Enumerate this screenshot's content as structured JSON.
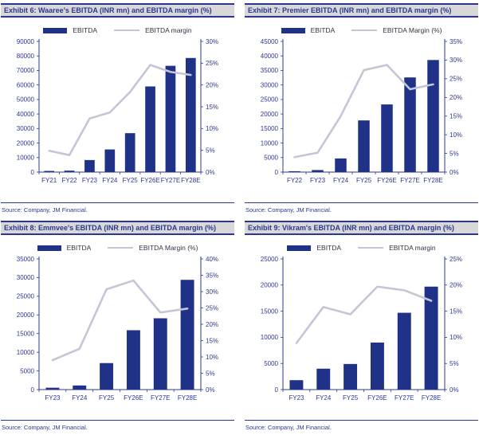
{
  "colors": {
    "bar": "#1f3288",
    "line": "#c4c6d8",
    "axis": "#2c3792",
    "tick_text": "#2c3792",
    "title_text": "#2c3792",
    "title_bg": "#d8d8d8",
    "source_text": "#2c3792"
  },
  "chart_data": [
    {
      "type": "bar",
      "combo": "bar+line",
      "title": "Exhibit 6: Waaree's EBITDA (INR mn) and EBITDA margin (%)",
      "source": "Source: Company, JM Financial.",
      "categories": [
        "FY21",
        "FY22",
        "FY23",
        "FY24",
        "FY25",
        "FY26E",
        "FY27E",
        "FY28E"
      ],
      "series": [
        {
          "name": "EBITDA",
          "type": "bar",
          "axis": "left",
          "values": [
            800,
            1000,
            8300,
            15600,
            26800,
            59000,
            73200,
            78600
          ]
        },
        {
          "name": "EBITDA margin",
          "type": "line",
          "axis": "right",
          "values": [
            4.9,
            3.9,
            12.3,
            13.7,
            18.4,
            24.6,
            23.0,
            22.3
          ]
        }
      ],
      "left_axis": {
        "min": 0,
        "max": 90000,
        "step": 10000,
        "format": "number"
      },
      "right_axis": {
        "min": 0,
        "max": 30,
        "step": 5,
        "format": "percent"
      },
      "grid": false,
      "legend_position": "top"
    },
    {
      "type": "bar",
      "combo": "bar+line",
      "title": "Exhibit 7: Premier EBITDA (INR mn) and EBITDA margin (%)",
      "source": "Source: Company, JM Financial.",
      "categories": [
        "FY22",
        "FY23",
        "FY24",
        "FY25",
        "FY26E",
        "FY27E",
        "FY28E"
      ],
      "series": [
        {
          "name": "EBITDA",
          "type": "bar",
          "axis": "left",
          "values": [
            300,
            700,
            4700,
            17800,
            23300,
            32600,
            38600
          ]
        },
        {
          "name": "EBITDA Margin (%)",
          "type": "line",
          "axis": "right",
          "values": [
            4.0,
            5.2,
            15.0,
            27.3,
            28.7,
            22.2,
            23.5
          ]
        }
      ],
      "left_axis": {
        "min": 0,
        "max": 45000,
        "step": 5000,
        "format": "number"
      },
      "right_axis": {
        "min": 0,
        "max": 35,
        "step": 5,
        "format": "percent"
      },
      "grid": false,
      "legend_position": "top"
    },
    {
      "type": "bar",
      "combo": "bar+line",
      "title": "Exhibit 8: Emmvee's EBITDA (INR mn) and EBITDA margin (%)",
      "source": "Source: Company, JM Financial.",
      "categories": [
        "FY23",
        "FY24",
        "FY25",
        "FY26E",
        "FY27E",
        "FY28E"
      ],
      "series": [
        {
          "name": "EBITDA",
          "type": "bar",
          "axis": "left",
          "values": [
            500,
            1100,
            7100,
            15900,
            19100,
            29400
          ]
        },
        {
          "name": "EBITDA Margin (%)",
          "type": "line",
          "axis": "right",
          "values": [
            9.0,
            12.5,
            30.7,
            33.4,
            23.6,
            24.8
          ]
        }
      ],
      "left_axis": {
        "min": 0,
        "max": 35000,
        "step": 5000,
        "format": "number"
      },
      "right_axis": {
        "min": 0,
        "max": 40,
        "step": 5,
        "format": "percent"
      },
      "grid": false,
      "legend_position": "top"
    },
    {
      "type": "bar",
      "combo": "bar+line",
      "title": "Exhibit 9: Vikram's EBITDA (INR mn) and EBITDA margin (%)",
      "source": "Source: Company, JM Financial.",
      "categories": [
        "FY23",
        "FY24",
        "FY25",
        "FY26E",
        "FY27E",
        "FY28E"
      ],
      "series": [
        {
          "name": "EBITDA",
          "type": "bar",
          "axis": "left",
          "values": [
            1800,
            4000,
            4900,
            9000,
            14700,
            19700
          ]
        },
        {
          "name": "EBITDA margin",
          "type": "line",
          "axis": "right",
          "values": [
            8.9,
            15.8,
            14.4,
            19.7,
            19.0,
            17.0
          ]
        }
      ],
      "left_axis": {
        "min": 0,
        "max": 25000,
        "step": 5000,
        "format": "number"
      },
      "right_axis": {
        "min": 0,
        "max": 25,
        "step": 5,
        "format": "percent"
      },
      "grid": false,
      "legend_position": "top"
    }
  ]
}
